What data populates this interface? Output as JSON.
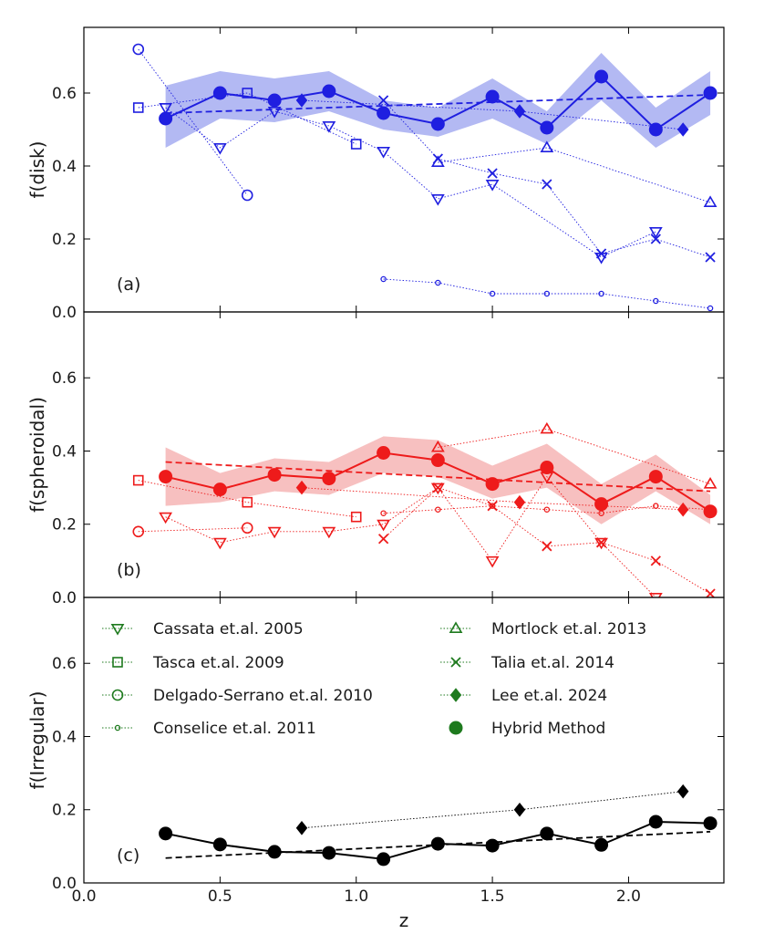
{
  "chart_data": [
    {
      "type": "line",
      "panel_label": "(a)",
      "ylabel": "f(disk)",
      "xlabel": "",
      "xlim": [
        0.0,
        2.35
      ],
      "ylim": [
        0.0,
        0.78
      ],
      "yticks": [
        "0.0",
        "0.2",
        "0.4",
        "0.6"
      ],
      "ytick_values": [
        0.0,
        0.2,
        0.4,
        0.6
      ],
      "color": "#1f1fe0",
      "band_color": "#b3b9f3",
      "band": {
        "x": [
          0.3,
          0.5,
          0.7,
          0.9,
          1.1,
          1.3,
          1.5,
          1.7,
          1.9,
          2.1,
          2.3
        ],
        "low": [
          0.45,
          0.53,
          0.52,
          0.55,
          0.5,
          0.48,
          0.53,
          0.46,
          0.58,
          0.45,
          0.54
        ],
        "high": [
          0.62,
          0.66,
          0.64,
          0.66,
          0.58,
          0.56,
          0.64,
          0.55,
          0.71,
          0.56,
          0.66
        ]
      },
      "trend": {
        "x": [
          0.3,
          2.3
        ],
        "y": [
          0.545,
          0.595
        ]
      },
      "series": [
        {
          "name": "Hybrid Method",
          "marker": "dot",
          "line": "solid",
          "x": [
            0.3,
            0.5,
            0.7,
            0.9,
            1.1,
            1.3,
            1.5,
            1.7,
            1.9,
            2.1,
            2.3
          ],
          "y": [
            0.53,
            0.6,
            0.58,
            0.605,
            0.545,
            0.515,
            0.59,
            0.505,
            0.645,
            0.5,
            0.6
          ]
        },
        {
          "name": "Lee et.al. 2024",
          "marker": "diamond",
          "line": "dotted",
          "x": [
            0.8,
            1.6,
            2.2
          ],
          "y": [
            0.58,
            0.55,
            0.5
          ]
        },
        {
          "name": "Cassata et.al. 2005",
          "marker": "triangle_down",
          "line": "dotted",
          "x": [
            0.3,
            0.5,
            0.7,
            0.9,
            1.1,
            1.3,
            1.5,
            1.9,
            2.1
          ],
          "y": [
            0.56,
            0.45,
            0.55,
            0.51,
            0.44,
            0.31,
            0.35,
            0.15,
            0.22
          ]
        },
        {
          "name": "Tasca et.al. 2009",
          "marker": "square",
          "line": "dotted",
          "x": [
            0.2,
            0.6,
            1.0
          ],
          "y": [
            0.56,
            0.6,
            0.46
          ]
        },
        {
          "name": "Delgado-Serrano et.al. 2010",
          "marker": "circle_open",
          "line": "dotted",
          "x": [
            0.2,
            0.6
          ],
          "y": [
            0.72,
            0.32
          ]
        },
        {
          "name": "Conselice et.al. 2011",
          "marker": "small_circle",
          "line": "dotted",
          "x": [
            1.1,
            1.3,
            1.5,
            1.7,
            1.9,
            2.1,
            2.3
          ],
          "y": [
            0.09,
            0.08,
            0.05,
            0.05,
            0.05,
            0.03,
            0.01
          ]
        },
        {
          "name": "Mortlock et.al. 2013",
          "marker": "triangle_up",
          "line": "dotted",
          "x": [
            1.3,
            1.7,
            2.3
          ],
          "y": [
            0.41,
            0.45,
            0.3
          ]
        },
        {
          "name": "Talia et.al. 2014",
          "marker": "x",
          "line": "dotted",
          "x": [
            1.1,
            1.3,
            1.5,
            1.7,
            1.9,
            2.1,
            2.3
          ],
          "y": [
            0.58,
            0.42,
            0.38,
            0.35,
            0.16,
            0.2,
            0.15
          ]
        }
      ]
    },
    {
      "type": "line",
      "panel_label": "(b)",
      "ylabel": "f(spheroidal)",
      "xlabel": "",
      "xlim": [
        0.0,
        2.35
      ],
      "ylim": [
        0.0,
        0.78
      ],
      "yticks": [
        "0.0",
        "0.2",
        "0.4",
        "0.6"
      ],
      "ytick_values": [
        0.0,
        0.2,
        0.4,
        0.6
      ],
      "color": "#ee1b1b",
      "band_color": "#f7c0c0",
      "band": {
        "x": [
          0.3,
          0.5,
          0.7,
          0.9,
          1.1,
          1.3,
          1.5,
          1.7,
          1.9,
          2.1,
          2.3
        ],
        "low": [
          0.25,
          0.26,
          0.29,
          0.28,
          0.34,
          0.33,
          0.27,
          0.3,
          0.2,
          0.29,
          0.2
        ],
        "high": [
          0.41,
          0.34,
          0.38,
          0.37,
          0.44,
          0.43,
          0.36,
          0.42,
          0.31,
          0.39,
          0.28
        ]
      },
      "trend": {
        "x": [
          0.3,
          2.3
        ],
        "y": [
          0.37,
          0.29
        ]
      },
      "series": [
        {
          "name": "Hybrid Method",
          "marker": "dot",
          "line": "solid",
          "x": [
            0.3,
            0.5,
            0.7,
            0.9,
            1.1,
            1.3,
            1.5,
            1.7,
            1.9,
            2.1,
            2.3
          ],
          "y": [
            0.33,
            0.295,
            0.335,
            0.325,
            0.395,
            0.375,
            0.31,
            0.355,
            0.255,
            0.33,
            0.235
          ]
        },
        {
          "name": "Lee et.al. 2024",
          "marker": "diamond",
          "line": "dotted",
          "x": [
            0.8,
            1.6,
            2.2
          ],
          "y": [
            0.3,
            0.26,
            0.24
          ]
        },
        {
          "name": "Cassata et.al. 2005",
          "marker": "triangle_down",
          "line": "dotted",
          "x": [
            0.3,
            0.5,
            0.7,
            0.9,
            1.1,
            1.3,
            1.5,
            1.7,
            1.9,
            2.1
          ],
          "y": [
            0.22,
            0.15,
            0.18,
            0.18,
            0.2,
            0.3,
            0.1,
            0.33,
            0.15,
            0.0
          ]
        },
        {
          "name": "Tasca et.al. 2009",
          "marker": "square",
          "line": "dotted",
          "x": [
            0.2,
            0.6,
            1.0
          ],
          "y": [
            0.32,
            0.26,
            0.22
          ]
        },
        {
          "name": "Delgado-Serrano et.al. 2010",
          "marker": "circle_open",
          "line": "dotted",
          "x": [
            0.2,
            0.6
          ],
          "y": [
            0.18,
            0.19
          ]
        },
        {
          "name": "Conselice et.al. 2011",
          "marker": "small_circle",
          "line": "dotted",
          "x": [
            1.1,
            1.3,
            1.5,
            1.7,
            1.9,
            2.1,
            2.3
          ],
          "y": [
            0.23,
            0.24,
            0.25,
            0.24,
            0.23,
            0.25,
            0.24
          ]
        },
        {
          "name": "Mortlock et.al. 2013",
          "marker": "triangle_up",
          "line": "dotted",
          "x": [
            1.3,
            1.7,
            2.3
          ],
          "y": [
            0.41,
            0.46,
            0.31
          ]
        },
        {
          "name": "Talia et.al. 2014",
          "marker": "x",
          "line": "dotted",
          "x": [
            1.1,
            1.3,
            1.5,
            1.7,
            1.9,
            2.1,
            2.3
          ],
          "y": [
            0.16,
            0.3,
            0.25,
            0.14,
            0.15,
            0.1,
            0.01
          ]
        }
      ]
    },
    {
      "type": "line",
      "panel_label": "(c)",
      "ylabel": "f(Irregular)",
      "xlabel": "z",
      "xlim": [
        0.0,
        2.35
      ],
      "ylim": [
        0.0,
        0.78
      ],
      "yticks": [
        "0.0",
        "0.2",
        "0.4",
        "0.6"
      ],
      "ytick_values": [
        0.0,
        0.2,
        0.4,
        0.6
      ],
      "xticks": [
        "0.0",
        "0.5",
        "1.0",
        "1.5",
        "2.0"
      ],
      "xtick_values": [
        0.0,
        0.5,
        1.0,
        1.5,
        2.0
      ],
      "color": "#000000",
      "trend": {
        "x": [
          0.3,
          2.3
        ],
        "y": [
          0.068,
          0.14
        ]
      },
      "series": [
        {
          "name": "Hybrid Method",
          "marker": "dot",
          "line": "solid",
          "x": [
            0.3,
            0.5,
            0.7,
            0.9,
            1.1,
            1.3,
            1.5,
            1.7,
            1.9,
            2.1,
            2.3
          ],
          "y": [
            0.135,
            0.105,
            0.085,
            0.082,
            0.065,
            0.107,
            0.102,
            0.135,
            0.104,
            0.167,
            0.163
          ]
        },
        {
          "name": "Lee et.al. 2024",
          "marker": "diamond",
          "line": "dotted",
          "x": [
            0.8,
            1.6,
            2.2
          ],
          "y": [
            0.15,
            0.2,
            0.25
          ]
        }
      ],
      "legend": {
        "placement": "upper",
        "color": "#1e7a1e",
        "entries": [
          {
            "label": "Cassata et.al. 2005",
            "marker": "triangle_down"
          },
          {
            "label": "Tasca et.al. 2009",
            "marker": "square"
          },
          {
            "label": "Delgado-Serrano et.al. 2010",
            "marker": "circle_open"
          },
          {
            "label": "Conselice et.al. 2011",
            "marker": "small_circle"
          },
          {
            "label": "Mortlock et.al. 2013",
            "marker": "triangle_up"
          },
          {
            "label": "Talia et.al. 2014",
            "marker": "x"
          },
          {
            "label": "Lee et.al. 2024",
            "marker": "diamond"
          },
          {
            "label": "Hybrid Method",
            "marker": "dot"
          }
        ]
      }
    }
  ]
}
